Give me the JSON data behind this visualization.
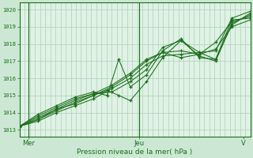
{
  "bg_color": "#cce8d4",
  "plot_bg": "#dff2e5",
  "grid_color": "#b0cfb8",
  "line_color": "#1a6e1a",
  "marker_color": "#1a6e1a",
  "ylabel_ticks": [
    1013,
    1014,
    1015,
    1016,
    1017,
    1018,
    1019,
    1020
  ],
  "ylim": [
    1012.6,
    1020.4
  ],
  "xlim": [
    0,
    1
  ],
  "xlabel": "Pression niveau de la mer( hPa )",
  "xtick_labels": [
    "Mer",
    "Jeu",
    "V"
  ],
  "xtick_positions": [
    0.04,
    0.52,
    0.97
  ],
  "font_color": "#1a6e1a",
  "lines": [
    {
      "x": [
        0.0,
        0.08,
        0.16,
        0.24,
        0.32,
        0.4,
        0.48,
        0.55,
        0.62,
        0.7,
        0.78,
        0.85,
        0.92,
        1.0
      ],
      "y": [
        1013.2,
        1013.6,
        1014.1,
        1014.6,
        1015.0,
        1015.5,
        1016.2,
        1017.0,
        1017.5,
        1017.2,
        1017.4,
        1018.1,
        1019.3,
        1019.6
      ]
    },
    {
      "x": [
        0.0,
        0.08,
        0.16,
        0.24,
        0.32,
        0.4,
        0.48,
        0.55,
        0.62,
        0.7,
        0.78,
        0.85,
        0.92,
        1.0
      ],
      "y": [
        1013.2,
        1013.8,
        1014.3,
        1014.8,
        1015.1,
        1015.2,
        1015.8,
        1016.5,
        1017.8,
        1018.2,
        1017.5,
        1017.1,
        1019.1,
        1019.8
      ]
    },
    {
      "x": [
        0.0,
        0.08,
        0.16,
        0.24,
        0.32,
        0.38,
        0.43,
        0.48,
        0.55,
        0.62,
        0.7,
        0.78,
        0.85,
        0.92,
        1.0
      ],
      "y": [
        1013.2,
        1013.9,
        1014.4,
        1014.9,
        1015.2,
        1015.0,
        1017.1,
        1015.5,
        1016.2,
        1017.6,
        1018.3,
        1017.2,
        1017.1,
        1019.4,
        1019.5
      ]
    },
    {
      "x": [
        0.0,
        0.08,
        0.16,
        0.24,
        0.32,
        0.38,
        0.43,
        0.48,
        0.55,
        0.62,
        0.7,
        0.78,
        0.85,
        0.92,
        1.0
      ],
      "y": [
        1013.2,
        1013.7,
        1014.2,
        1014.5,
        1015.0,
        1015.3,
        1015.0,
        1014.7,
        1015.8,
        1017.2,
        1018.2,
        1017.3,
        1017.0,
        1019.2,
        1019.7
      ]
    },
    {
      "x": [
        0.0,
        0.08,
        0.16,
        0.24,
        0.32,
        0.4,
        0.48,
        0.55,
        0.62,
        0.7,
        0.78,
        0.85,
        0.92,
        1.0
      ],
      "y": [
        1013.2,
        1013.5,
        1014.0,
        1014.4,
        1014.8,
        1015.4,
        1016.0,
        1016.8,
        1017.3,
        1017.4,
        1017.5,
        1017.6,
        1019.5,
        1019.9
      ]
    },
    {
      "x": [
        0.0,
        0.08,
        0.16,
        0.24,
        0.32,
        0.4,
        0.48,
        0.55,
        0.62,
        0.7,
        0.78,
        0.85,
        0.92,
        1.0
      ],
      "y": [
        1013.2,
        1013.6,
        1014.2,
        1014.7,
        1015.1,
        1015.6,
        1016.3,
        1017.1,
        1017.5,
        1017.6,
        1017.4,
        1017.7,
        1019.0,
        1019.4
      ]
    }
  ],
  "vlines": [
    0.04,
    0.52
  ],
  "n_vgrid": 46,
  "figsize": [
    3.2,
    2.0
  ],
  "dpi": 100
}
